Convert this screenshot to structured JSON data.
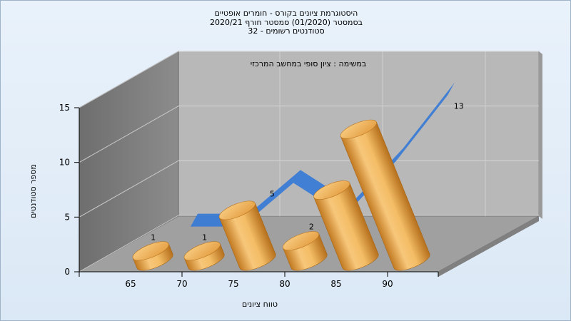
{
  "chart_data": {
    "type": "bar",
    "title": [
      "היסטוגרמת ציונים בקורס - חומרים אופטיים",
      "בסמסטר  (01/2020)  סמסטר חורף  2020/21",
      "סטודנטים רשומים - 32"
    ],
    "subtitle": "במשימה : ציון סופי במחשב המרכזי",
    "xlabel": "טווח ציונים",
    "ylabel": "מספר סטודנטים",
    "categories": [
      "65",
      "70",
      "75",
      "80",
      "85",
      "90"
    ],
    "values": [
      1,
      1,
      5,
      2,
      7,
      13
    ],
    "y_ticks": [
      "0",
      "5",
      "10",
      "15"
    ],
    "ylim": [
      0,
      15
    ],
    "grid": true,
    "colors": {
      "bar": "#f2b45c",
      "bar_dark": "#c57f24",
      "ribbon": "#3a7bd5",
      "back_wall": "#b5b5b5",
      "side_wall": "#7a7a7a",
      "floor": "#9a9a9a"
    }
  }
}
